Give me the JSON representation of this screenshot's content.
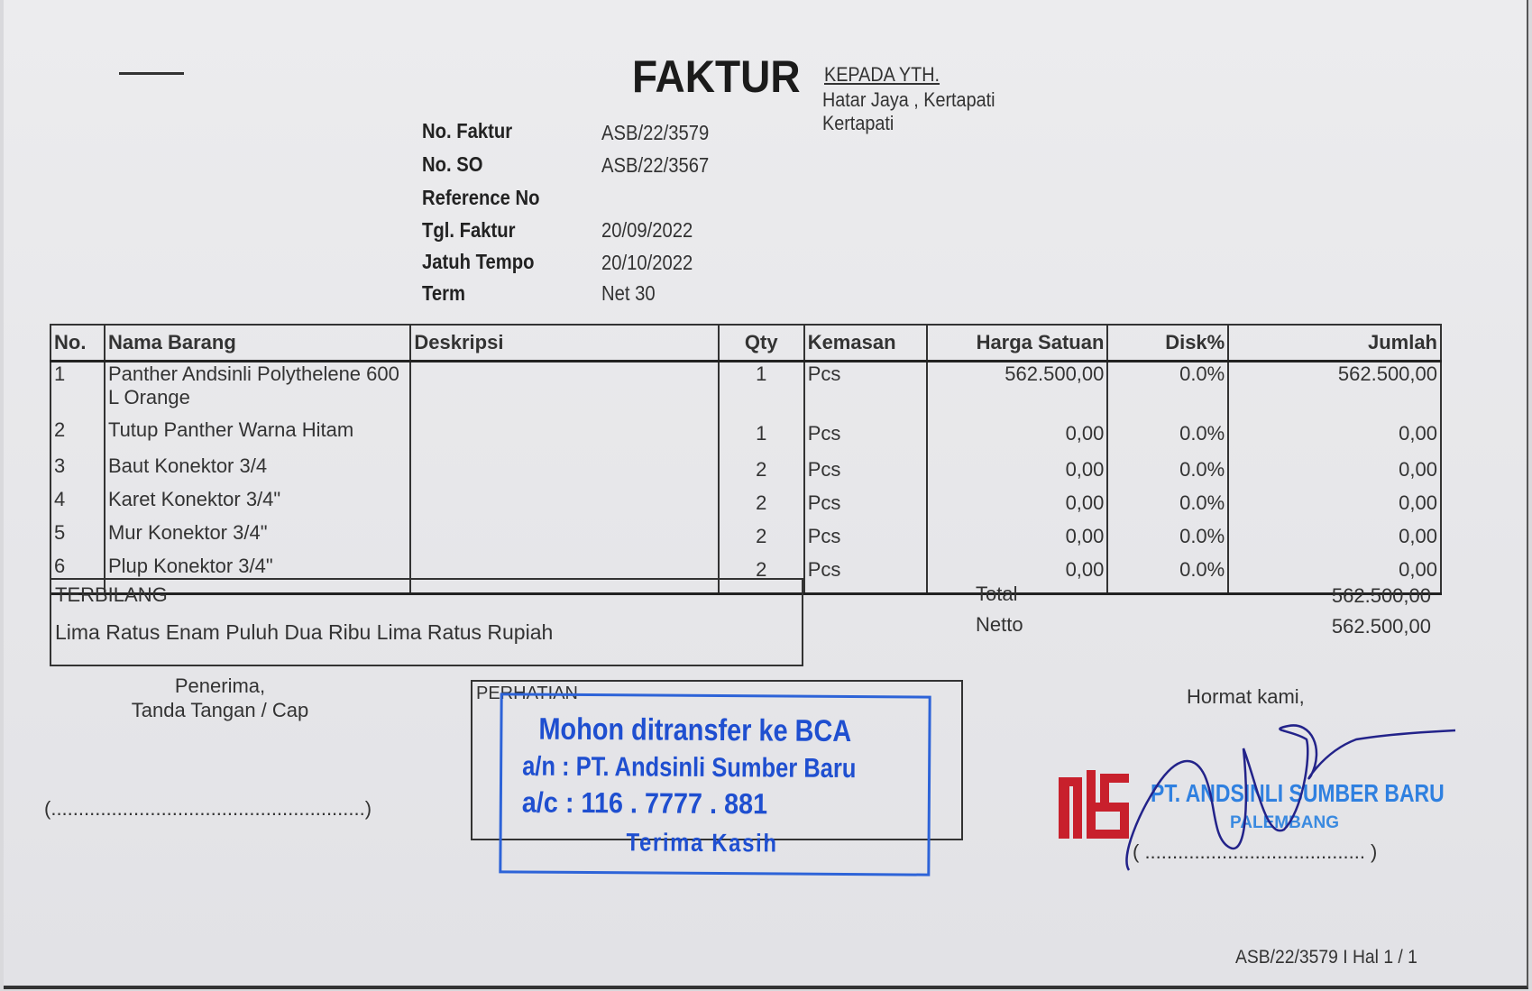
{
  "title": "FAKTUR",
  "recipient": {
    "heading": "KEPADA YTH.",
    "line1": "Hatar Jaya , Kertapati",
    "line2": "Kertapati"
  },
  "meta": [
    {
      "label": "No. Faktur",
      "value": "ASB/22/3579"
    },
    {
      "label": "No. SO",
      "value": "ASB/22/3567"
    },
    {
      "label": "Reference No",
      "value": ""
    },
    {
      "label": "Tgl. Faktur",
      "value": "20/09/2022"
    },
    {
      "label": "Jatuh Tempo",
      "value": "20/10/2022"
    },
    {
      "label": "Term",
      "value": "Net 30"
    }
  ],
  "table": {
    "headers": [
      "No.",
      "Nama Barang",
      "Deskripsi",
      "Qty",
      "Kemasan",
      "Harga Satuan",
      "Disk%",
      "Jumlah"
    ],
    "rows": [
      {
        "no": "1",
        "name": "Panther Andsinli Polythelene 600 L Orange",
        "desc": "",
        "qty": "1",
        "unit": "Pcs",
        "price": "562.500,00",
        "disc": "0.0%",
        "total": "562.500,00"
      },
      {
        "no": "2",
        "name": "Tutup Panther Warna Hitam",
        "desc": "",
        "qty": "1",
        "unit": "Pcs",
        "price": "0,00",
        "disc": "0.0%",
        "total": "0,00"
      },
      {
        "no": "3",
        "name": "Baut Konektor 3/4",
        "desc": "",
        "qty": "2",
        "unit": "Pcs",
        "price": "0,00",
        "disc": "0.0%",
        "total": "0,00"
      },
      {
        "no": "4",
        "name": "Karet Konektor 3/4\"",
        "desc": "",
        "qty": "2",
        "unit": "Pcs",
        "price": "0,00",
        "disc": "0.0%",
        "total": "0,00"
      },
      {
        "no": "5",
        "name": "Mur Konektor 3/4\"",
        "desc": "",
        "qty": "2",
        "unit": "Pcs",
        "price": "0,00",
        "disc": "0.0%",
        "total": "0,00"
      },
      {
        "no": "6",
        "name": "Plup Konektor 3/4\"",
        "desc": "",
        "qty": "2",
        "unit": "Pcs",
        "price": "0,00",
        "disc": "0.0%",
        "total": "0,00"
      }
    ]
  },
  "terbilang": {
    "label": "TERBILANG",
    "text": "Lima Ratus Enam Puluh Dua Ribu Lima Ratus Rupiah"
  },
  "totals": {
    "total_label": "Total",
    "total_value": "562.500,00",
    "netto_label": "Netto",
    "netto_value": "562.500,00"
  },
  "receiver": {
    "line1": "Penerima,",
    "line2": "Tanda Tangan / Cap",
    "sign_line": "(.........................................................)"
  },
  "perhatian": {
    "label": "PERHATIAN",
    "stamp_line1": "Mohon ditransfer ke BCA",
    "stamp_line2": "a/n : PT. Andsinli Sumber Baru",
    "stamp_line3": "a/c : 116 . 7777 . 881",
    "stamp_line4": "Terima Kasih"
  },
  "sender": {
    "closing": "Hormat kami,",
    "logo_text": "ASB",
    "company_stamp": "PT. ANDSINLI SUMBER BARU",
    "company_city": "PALEMBANG",
    "sign_line": "( ........................................ )"
  },
  "footer": "ASB/22/3579 I Hal 1 / 1",
  "colors": {
    "stamp_blue": "#1f4fd0",
    "logo_red": "#c8202c",
    "signature_ink": "#23238a"
  }
}
